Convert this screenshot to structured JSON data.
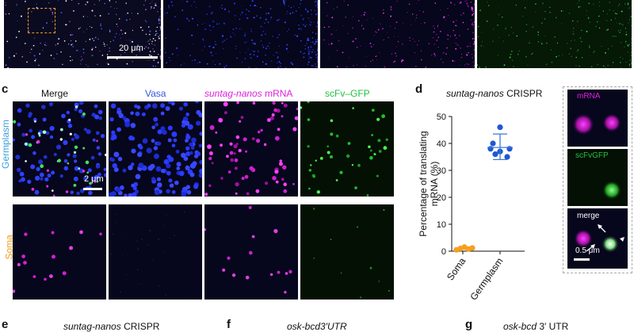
{
  "colors": {
    "merge": "#111111",
    "vasa": "#3355dd",
    "mrna": "#e020e0",
    "gfp": "#22c040",
    "germplasm_label": "#3aa0dd",
    "soma_label": "#f0a020",
    "soma_points": "#f5a020",
    "germplasm_points": "#1e57d6",
    "error_bar": "#3a78d8"
  },
  "top_row": {
    "scale_label": "20 μm"
  },
  "panel_c": {
    "letter": "c",
    "columns": [
      {
        "label_parts": [
          "Merge"
        ]
      },
      {
        "label_parts": [
          "Vasa"
        ]
      },
      {
        "label_parts": [
          "suntag-nanos",
          " mRNA"
        ]
      },
      {
        "label_parts": [
          "scFv–GFP"
        ]
      }
    ],
    "row_labels": [
      "Germplasm",
      "Soma"
    ],
    "scale_label": "2 μm"
  },
  "panel_d": {
    "letter": "d",
    "title_italic": "suntag-nanos",
    "title_rest": " CRISPR",
    "inset_labels": [
      "mRNA",
      "scFvGFP",
      "merge"
    ],
    "inset_scale": "0.5 μm"
  },
  "chart_data": {
    "type": "scatter",
    "categories": [
      "Soma",
      "Germplasm"
    ],
    "ylabel": "Percentage of translating mRNA (%)",
    "ylim": [
      0,
      50
    ],
    "yticks": [
      0,
      10,
      20,
      30,
      40,
      50
    ],
    "series": [
      {
        "name": "Soma",
        "values": [
          0.5,
          1.0,
          1.5,
          0.8,
          1.2
        ]
      },
      {
        "name": "Germplasm",
        "values": [
          46,
          40,
          38,
          36,
          35,
          37,
          38
        ]
      }
    ],
    "summary": {
      "Germplasm": {
        "mean": 38.5,
        "sd_low": 34,
        "sd_high": 43.5
      }
    }
  },
  "bottom_row": {
    "e": {
      "letter": "e",
      "italic": "suntag-nanos",
      "rest": " CRISPR"
    },
    "f": {
      "letter": "f",
      "italic": "osk-bcd3′UTR",
      "rest": ""
    },
    "g": {
      "letter": "g",
      "italic": "osk-bcd",
      "rest": " 3′ UTR"
    }
  }
}
